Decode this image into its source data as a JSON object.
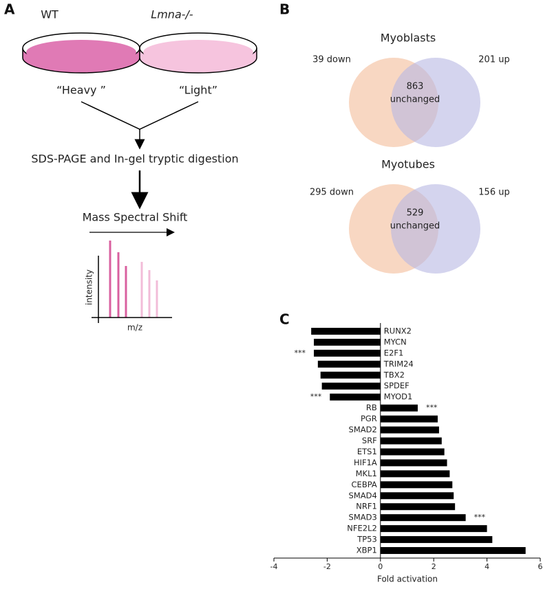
{
  "panel_a": {
    "label": "A",
    "left_condition": "WT",
    "right_condition": "Lmna-/-",
    "left_label": "“Heavy ”",
    "right_label": "“Light”",
    "step_1": "SDS-PAGE and In-gel tryptic digestion",
    "step_2": "Mass Spectral Shift",
    "y_axis": "intensity",
    "x_axis": "m/z"
  },
  "panel_b": {
    "label": "B",
    "venns": [
      {
        "title": "Myoblasts",
        "down": "39 down",
        "up": "201 up",
        "overlap_count": "863",
        "overlap_label": "unchanged"
      },
      {
        "title": "Myotubes",
        "down": "295 down",
        "up": "156 up",
        "overlap_count": "529",
        "overlap_label": "unchanged"
      }
    ]
  },
  "chart_data": {
    "type": "barh",
    "panel_label": "C",
    "xlabel": "Fold activation",
    "categories": [
      "RUNX2",
      "MYCN",
      "E2F1",
      "TRIM24",
      "TBX2",
      "SPDEF",
      "MYOD1",
      "RB",
      "PGR",
      "SMAD2",
      "SRF",
      "ETS1",
      "HIF1A",
      "MKL1",
      "CEBPA",
      "SMAD4",
      "NRF1",
      "SMAD3",
      "NFE2L2",
      "TP53",
      "XBP1"
    ],
    "values": [
      -2.6,
      -2.5,
      -2.5,
      -2.35,
      -2.25,
      -2.2,
      -1.9,
      1.4,
      2.15,
      2.2,
      2.3,
      2.4,
      2.5,
      2.6,
      2.7,
      2.75,
      2.8,
      3.2,
      4.0,
      4.2,
      5.45
    ],
    "significance": [
      null,
      null,
      "***",
      null,
      null,
      null,
      "***",
      "***",
      null,
      null,
      null,
      null,
      null,
      null,
      null,
      null,
      null,
      "***",
      null,
      null,
      null
    ],
    "color": "#000000",
    "xlim": [
      -4,
      6
    ],
    "xticks": [
      -4,
      -2,
      0,
      2,
      4,
      6
    ]
  }
}
